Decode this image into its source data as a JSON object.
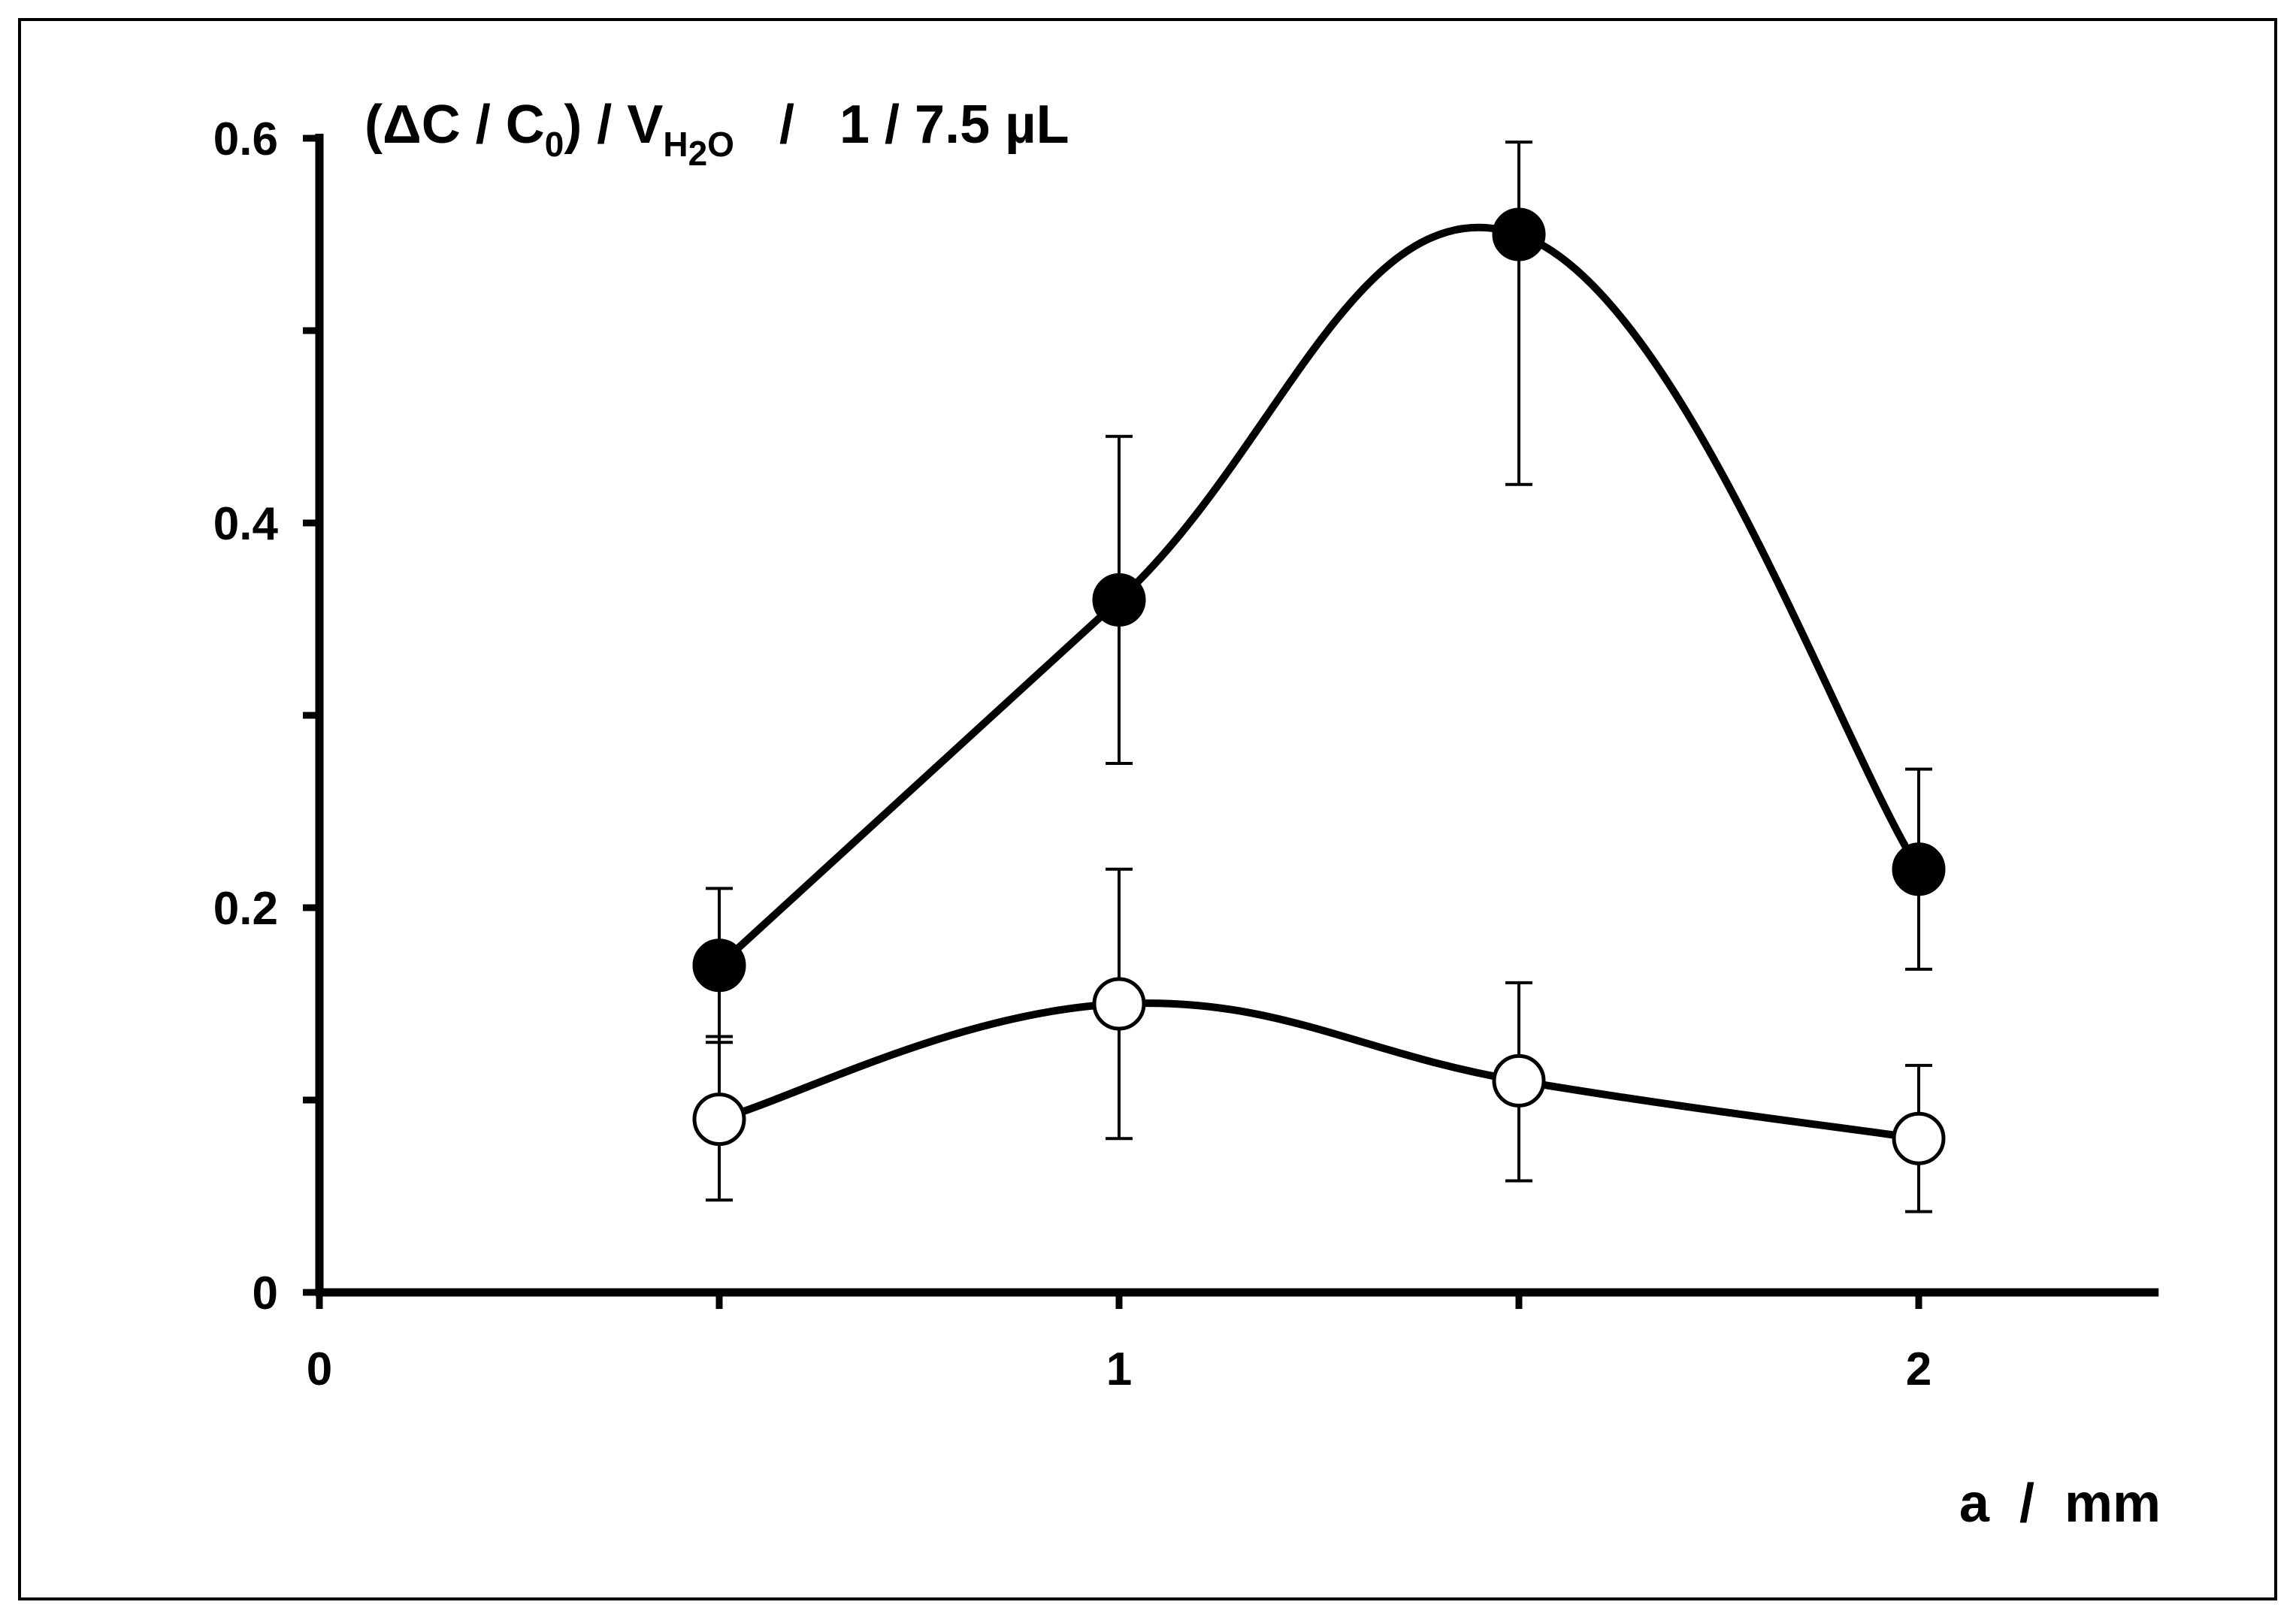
{
  "chart_data": {
    "type": "line",
    "ylabel": {
      "prefix": "(ΔC / C",
      "c_sub": "0",
      "mid": ") / V",
      "v_sub_h": "H",
      "v_sub_2": "2",
      "v_sub_o": "O",
      "suffix": "   /   1 / 7.5 µL"
    },
    "xlabel": "a  /  mm",
    "xlim": [
      0,
      2.3
    ],
    "ylim": [
      0,
      0.6
    ],
    "x_ticks": [
      0,
      0.5,
      1,
      1.5,
      2
    ],
    "x_tick_labels": [
      "0",
      "",
      "1",
      "",
      "2"
    ],
    "y_ticks": [
      0,
      0.1,
      0.2,
      0.3,
      0.4,
      0.5,
      0.6
    ],
    "y_tick_labels": [
      "0",
      "",
      "0.2",
      "",
      "0.4",
      "",
      "0.6"
    ],
    "grid": false,
    "series": [
      {
        "marker": "filled-circle",
        "x": [
          0.5,
          1.0,
          1.5,
          2.0
        ],
        "y": [
          0.17,
          0.36,
          0.55,
          0.22
        ],
        "err_low": [
          0.13,
          0.275,
          0.42,
          0.168
        ],
        "err_high": [
          0.21,
          0.445,
          0.598,
          0.272
        ]
      },
      {
        "marker": "open-circle",
        "x": [
          0.5,
          1.0,
          1.5,
          2.0
        ],
        "y": [
          0.09,
          0.15,
          0.11,
          0.08
        ],
        "err_low": [
          0.048,
          0.08,
          0.058,
          0.042
        ],
        "err_high": [
          0.133,
          0.22,
          0.161,
          0.118
        ]
      }
    ],
    "colors": {
      "line": "#000000",
      "open_fill": "#ffffff"
    }
  }
}
